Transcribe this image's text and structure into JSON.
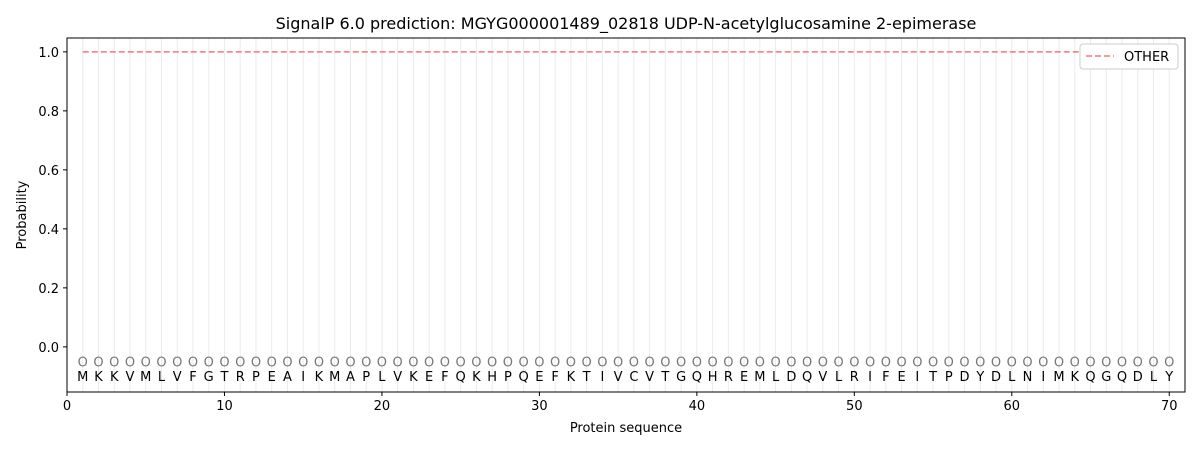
{
  "chart_data": {
    "type": "line",
    "title": "SignalP 6.0 prediction: MGYG000001489_02818 UDP-N-acetylglucosamine 2-epimerase",
    "xlabel": "Protein sequence",
    "ylabel": "Probability",
    "xlim": [
      0,
      71
    ],
    "ylim": [
      -0.153,
      1.047
    ],
    "xticks": [
      0,
      10,
      20,
      30,
      40,
      50,
      60,
      70
    ],
    "yticks": [
      0.0,
      0.2,
      0.4,
      0.6,
      0.8,
      1.0
    ],
    "grid": "vertical lines at each residue",
    "legend_placement": "top-right",
    "sequence": [
      "M",
      "K",
      "K",
      "V",
      "M",
      "L",
      "V",
      "F",
      "G",
      "T",
      "R",
      "P",
      "E",
      "A",
      "I",
      "K",
      "M",
      "A",
      "P",
      "L",
      "V",
      "K",
      "E",
      "F",
      "Q",
      "K",
      "H",
      "P",
      "Q",
      "E",
      "F",
      "K",
      "T",
      "I",
      "V",
      "C",
      "V",
      "T",
      "G",
      "Q",
      "H",
      "R",
      "E",
      "M",
      "L",
      "D",
      "Q",
      "V",
      "L",
      "R",
      "I",
      "F",
      "E",
      "I",
      "T",
      "P",
      "D",
      "Y",
      "D",
      "L",
      "N",
      "I",
      "M",
      "K",
      "Q",
      "G",
      "Q",
      "D",
      "L",
      "Y"
    ],
    "region_labels": "O",
    "series": [
      {
        "name": "OTHER",
        "color": "#f07878",
        "style": "dashed",
        "x_start": 1,
        "x_end": 70,
        "value": 1.0
      }
    ]
  }
}
